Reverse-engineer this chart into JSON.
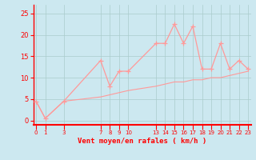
{
  "xlabel": "Vent moyen/en rafales ( km/h )",
  "bg_color": "#cce8f0",
  "line_color": "#ff9999",
  "grid_color": "#aacccc",
  "axis_color": "#ff0000",
  "tick_label_color": "#ff0000",
  "xlabel_color": "#ff0000",
  "ylim": [
    -1,
    27
  ],
  "yticks": [
    0,
    5,
    10,
    15,
    20,
    25
  ],
  "xlim": [
    -0.3,
    23.3
  ],
  "rafales_x": [
    0,
    1,
    3,
    7,
    8,
    9,
    10,
    13,
    14,
    15,
    16,
    17,
    18,
    19,
    20,
    21,
    22,
    23
  ],
  "rafales_y": [
    4.5,
    0.5,
    4.5,
    14,
    8,
    11.5,
    11.5,
    18,
    18,
    22.5,
    18,
    22,
    12,
    12,
    18,
    12,
    14,
    12
  ],
  "moyen_x": [
    0,
    1,
    3,
    7,
    8,
    9,
    10,
    13,
    14,
    15,
    16,
    17,
    18,
    19,
    20,
    21,
    22,
    23
  ],
  "moyen_y": [
    4.5,
    0.5,
    4.5,
    5.5,
    6.0,
    6.5,
    7.0,
    8.0,
    8.5,
    9.0,
    9.0,
    9.5,
    9.5,
    10.0,
    10.0,
    10.5,
    11.0,
    11.5
  ],
  "xtick_positions": [
    0,
    1,
    3,
    7,
    8,
    9,
    10,
    13,
    14,
    15,
    16,
    17,
    18,
    19,
    20,
    21,
    22,
    23
  ],
  "xtick_labels": [
    "0",
    "1",
    "3",
    "7",
    "8",
    "9",
    "10",
    "13",
    "14",
    "15",
    "16",
    "17",
    "18",
    "19",
    "20",
    "21",
    "22",
    "23"
  ]
}
